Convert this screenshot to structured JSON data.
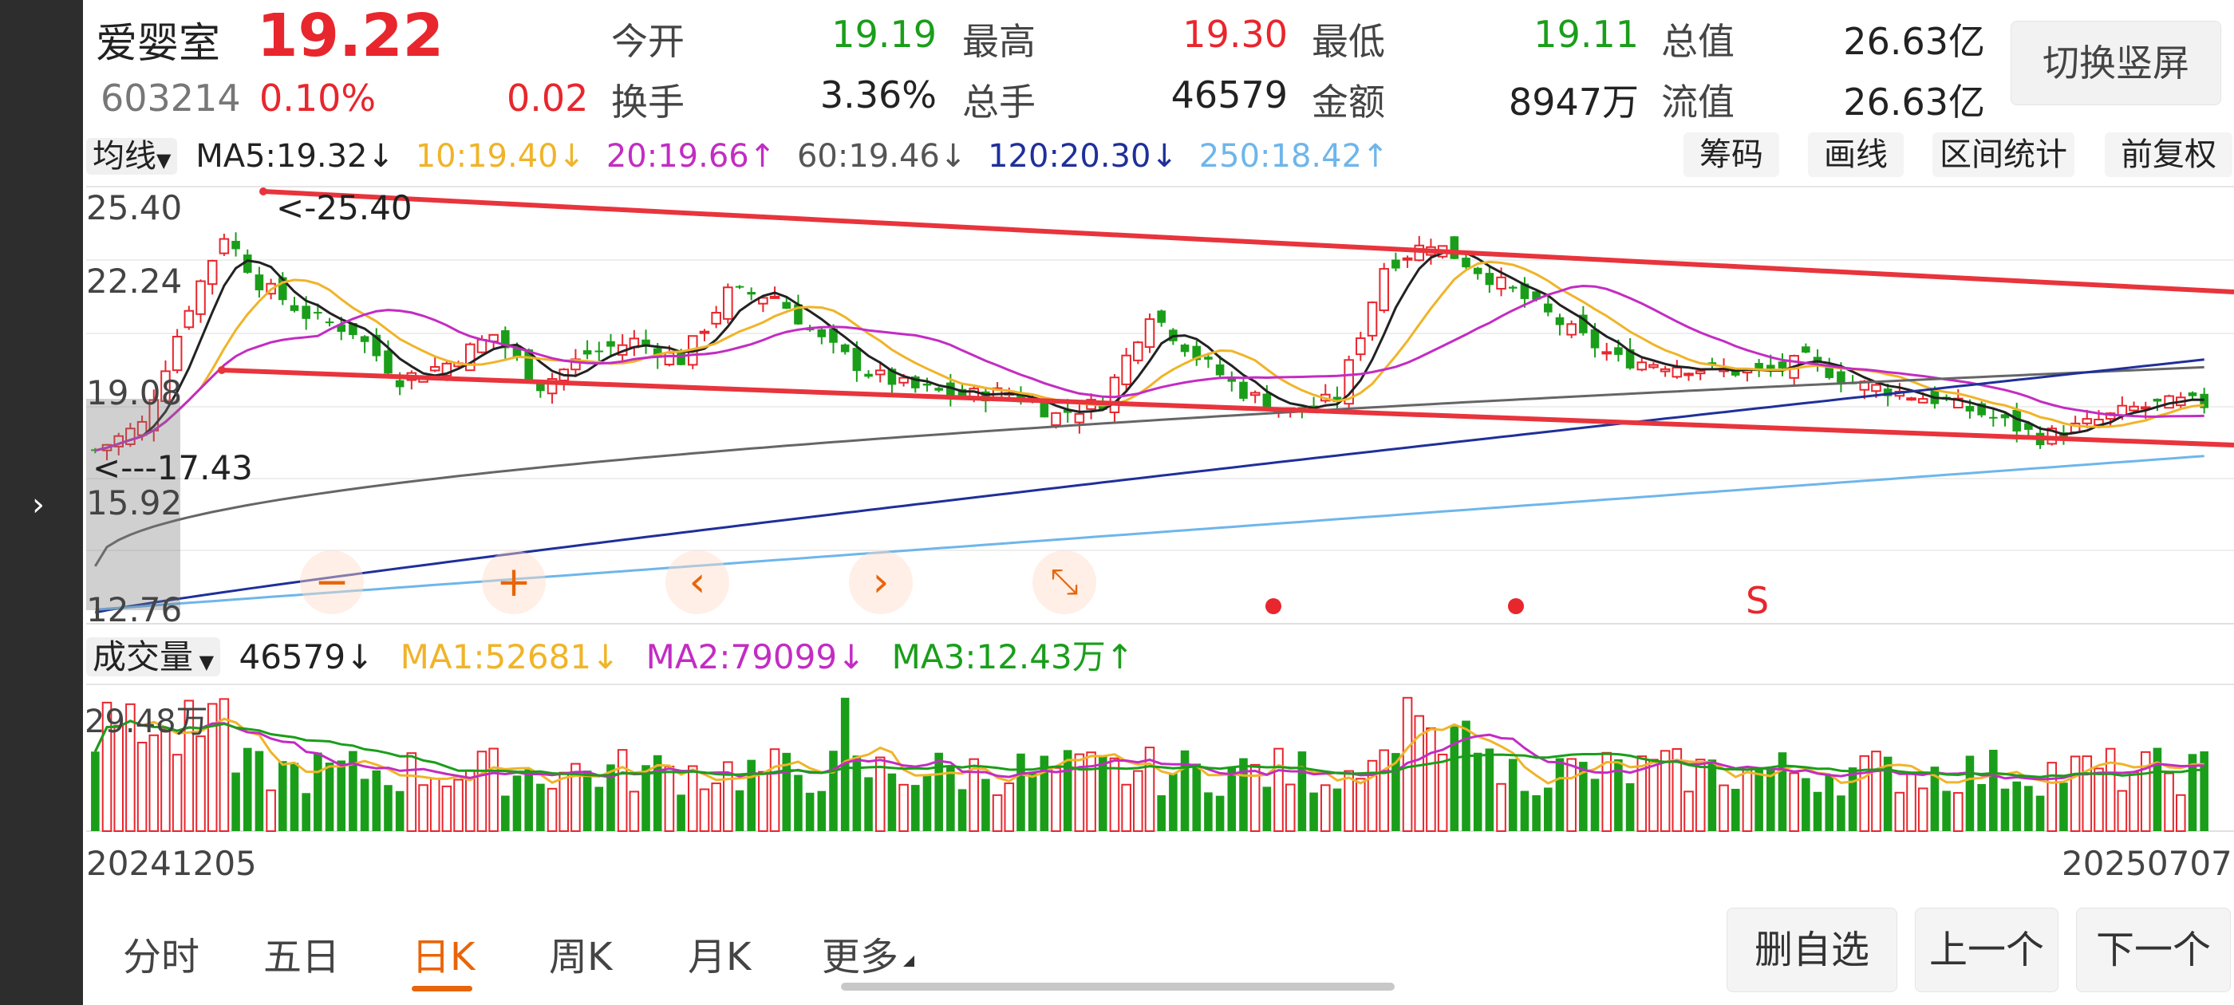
{
  "stock": {
    "name": "爱婴室",
    "price": "19.22",
    "code": "603214",
    "change_pct": "0.10%",
    "change": "0.02"
  },
  "quote": {
    "open_label": "今开",
    "open": "19.19",
    "high_label": "最高",
    "high": "19.30",
    "low_label": "最低",
    "low": "19.11",
    "mktcap_label": "总值",
    "mktcap": "26.63亿",
    "turnover_label": "换手",
    "turnover": "3.36%",
    "volume_label": "总手",
    "volume": "46579",
    "amount_label": "金额",
    "amount": "8947万",
    "float_label": "流值",
    "float_cap": "26.63亿"
  },
  "switch_label": "切换竖屏",
  "ma_bar": {
    "selector": "均线",
    "ma5": "MA5:19.32↓",
    "ma10": "10:19.40↓",
    "ma20": "20:19.66↑",
    "ma60": "60:19.46↓",
    "ma120": "120:20.30↓",
    "ma250": "250:18.42↑"
  },
  "tools": {
    "chips": "筹码",
    "draw": "画线",
    "range": "区间统计",
    "adjust": "前复权"
  },
  "colors": {
    "up": "#e8262d",
    "down": "#1a9e1a",
    "accent": "#e8650a",
    "ma5": "#222222",
    "ma10": "#f0b429",
    "ma20": "#c32cc3",
    "ma60": "#666666",
    "ma120": "#1f2f9a",
    "ma250": "#6eb6ea",
    "channel": "#e8343c"
  },
  "yaxis": [
    "25.40",
    "22.24",
    "19.08",
    "15.92",
    "12.76"
  ],
  "annotations": {
    "high": "<-25.40",
    "low": "<---17.43",
    "signal": "S"
  },
  "controls": {
    "zoom_out": "−",
    "zoom_in": "+",
    "prev": "‹",
    "next": "›",
    "fit": "⤡"
  },
  "volume_bar": {
    "selector": "成交量",
    "value": "46579↓",
    "ma1": "MA1:52681↓",
    "ma2": "MA2:79099↓",
    "ma3": "MA3:12.43万↑",
    "max_label": "29.48万"
  },
  "dates": {
    "start": "20241205",
    "end": "20250707"
  },
  "tabs": [
    "分时",
    "五日",
    "日K",
    "周K",
    "月K",
    "更多"
  ],
  "nav": {
    "remove": "删自选",
    "prev": "上一个",
    "next": "下一个"
  }
}
